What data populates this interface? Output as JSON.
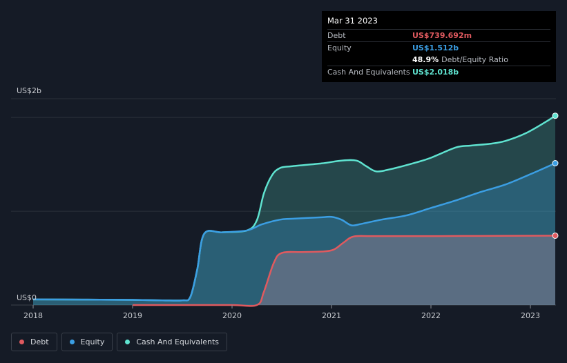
{
  "chart_data": {
    "type": "area",
    "y_axis_labels": {
      "top": "US$2b",
      "bottom": "US$0"
    },
    "ylim": [
      0,
      2200
    ],
    "xlim": [
      2018.0,
      2023.25
    ],
    "x_ticks": [
      "2018",
      "2019",
      "2020",
      "2021",
      "2022",
      "2023"
    ],
    "units": "US$ millions",
    "grid": true,
    "legend_position": "bottom-left",
    "series": [
      {
        "name": "Cash And Equivalents",
        "key": "cash",
        "color": "#5fe3d0",
        "x": [
          2018.0,
          2018.5,
          2019.0,
          2019.3,
          2019.5,
          2019.58,
          2019.65,
          2019.72,
          2019.9,
          2020.15,
          2020.25,
          2020.32,
          2020.4,
          2020.48,
          2020.6,
          2020.9,
          2021.1,
          2021.25,
          2021.35,
          2021.45,
          2021.6,
          2021.85,
          2022.0,
          2022.25,
          2022.4,
          2022.6,
          2022.75,
          2022.95,
          2023.15,
          2023.25
        ],
        "values": [
          60,
          58,
          55,
          50,
          50,
          85,
          380,
          760,
          775,
          795,
          905,
          1190,
          1380,
          1460,
          1480,
          1510,
          1540,
          1540,
          1480,
          1425,
          1450,
          1520,
          1570,
          1680,
          1700,
          1720,
          1750,
          1830,
          1950,
          2018
        ]
      },
      {
        "name": "Equity",
        "key": "equity",
        "color": "#3b9ee3",
        "x": [
          2018.0,
          2018.5,
          2019.0,
          2019.3,
          2019.5,
          2019.58,
          2019.65,
          2019.72,
          2019.9,
          2020.15,
          2020.3,
          2020.48,
          2020.6,
          2020.9,
          2021.0,
          2021.1,
          2021.2,
          2021.3,
          2021.5,
          2021.75,
          2022.0,
          2022.25,
          2022.5,
          2022.75,
          2023.0,
          2023.25
        ],
        "values": [
          60,
          58,
          55,
          50,
          50,
          85,
          380,
          760,
          775,
          795,
          860,
          910,
          920,
          935,
          940,
          910,
          850,
          865,
          910,
          955,
          1035,
          1115,
          1205,
          1285,
          1395,
          1512
        ]
      },
      {
        "name": "Debt",
        "key": "debt",
        "color": "#e05a5f",
        "x": [
          2019.0,
          2019.5,
          2020.0,
          2020.25,
          2020.32,
          2020.42,
          2020.5,
          2020.7,
          2020.9,
          2021.02,
          2021.12,
          2021.22,
          2021.4,
          2021.75,
          2022.0,
          2022.5,
          2023.0,
          2023.25
        ],
        "values": [
          0,
          0,
          0,
          0,
          140,
          450,
          555,
          565,
          570,
          590,
          665,
          730,
          735,
          735,
          735,
          737,
          739,
          739.692
        ]
      }
    ]
  },
  "tooltip": {
    "date": "Mar 31 2023",
    "debt_label": "Debt",
    "debt_value": "US$739.692m",
    "equity_label": "Equity",
    "equity_value": "US$1.512b",
    "ratio_value": "48.9%",
    "ratio_label": "Debt/Equity Ratio",
    "cash_label": "Cash And Equivalents",
    "cash_value": "US$2.018b"
  },
  "legend": [
    {
      "label": "Debt",
      "color": "#e05a5f"
    },
    {
      "label": "Equity",
      "color": "#3b9ee3"
    },
    {
      "label": "Cash And Equivalents",
      "color": "#5fe3d0"
    }
  ]
}
